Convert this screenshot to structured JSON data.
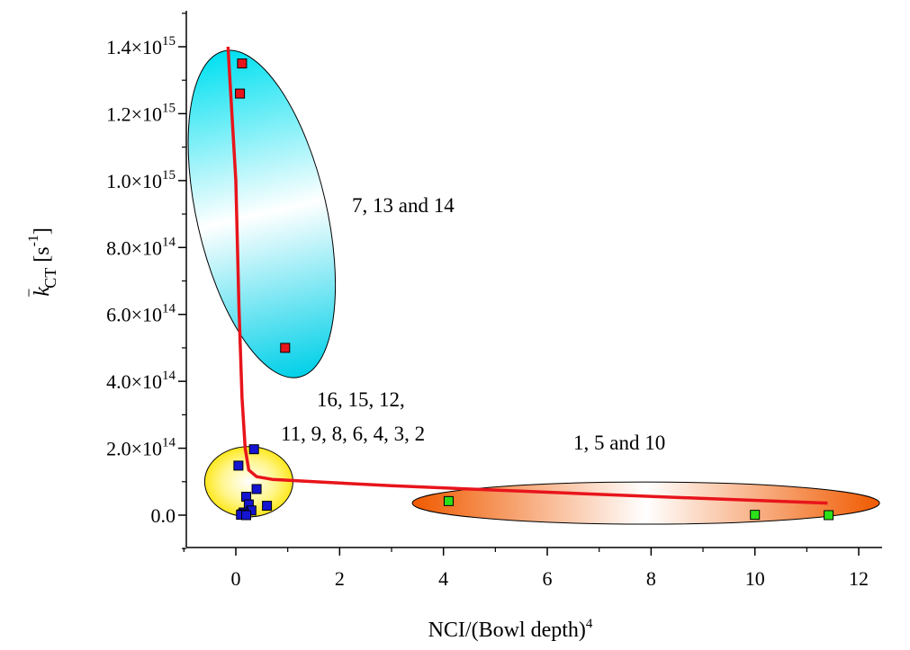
{
  "chart_data": {
    "type": "scatter",
    "xlabel": {
      "base": "NCI/(Bowl depth)",
      "sup": "4"
    },
    "ylabel": {
      "k": "k",
      "sub": "CT",
      "unit_open": "[s",
      "unit_sup": "-1",
      "unit_close": "]"
    },
    "xlim": [
      -1,
      13
    ],
    "ylim": [
      -100000000000000.0,
      1500000000000000.0
    ],
    "x_ticks": [
      0,
      2,
      4,
      6,
      8,
      10,
      12
    ],
    "x_tick_labels": [
      "0",
      "2",
      "4",
      "6",
      "8",
      "10",
      "12"
    ],
    "y_ticks": [
      {
        "value": 0,
        "mant": "0.0",
        "exp": ""
      },
      {
        "value": 200000000000000.0,
        "mant": "2.0×10",
        "exp": "14"
      },
      {
        "value": 400000000000000.0,
        "mant": "4.0×10",
        "exp": "14"
      },
      {
        "value": 600000000000000.0,
        "mant": "6.0×10",
        "exp": "14"
      },
      {
        "value": 800000000000000.0,
        "mant": "8.0×10",
        "exp": "14"
      },
      {
        "value": 1000000000000000.0,
        "mant": "1.0×10",
        "exp": "15"
      },
      {
        "value": 1200000000000000.0,
        "mant": "1.2×10",
        "exp": "15"
      },
      {
        "value": 1400000000000000.0,
        "mant": "1.4×10",
        "exp": "15"
      }
    ],
    "series": [
      {
        "color": "#e8141b",
        "points": [
          [
            0.12,
            1350000000000000.0
          ],
          [
            0.08,
            1260000000000000.0
          ],
          [
            0.95,
            500000000000000.0
          ]
        ]
      },
      {
        "color": "#1414d2",
        "points": [
          [
            0.05,
            148000000000000.0
          ],
          [
            0.35,
            197000000000000.0
          ],
          [
            0.4,
            78000000000000.0
          ],
          [
            0.2,
            55000000000000.0
          ],
          [
            0.25,
            32000000000000.0
          ],
          [
            0.6,
            28000000000000.0
          ],
          [
            0.3,
            14000000000000.0
          ],
          [
            0.15,
            8000000000000.0
          ],
          [
            0.12,
            3000000000000.0
          ],
          [
            0.1,
            1000000000000.0
          ],
          [
            0.2,
            0
          ]
        ]
      },
      {
        "color": "#2be01a",
        "points": [
          [
            4.1,
            42000000000000.0
          ],
          [
            10.0,
            1000000000000.0
          ],
          [
            11.42,
            0
          ]
        ]
      }
    ],
    "fit_line": {
      "color": "#e8141b",
      "points": [
        [
          -0.15,
          1400000000000000.0
        ],
        [
          0.0,
          1000000000000000.0
        ],
        [
          0.06,
          620000000000000.0
        ],
        [
          0.12,
          350000000000000.0
        ],
        [
          0.18,
          200000000000000.0
        ],
        [
          0.25,
          135000000000000.0
        ],
        [
          0.4,
          115000000000000.0
        ],
        [
          0.7,
          107000000000000.0
        ],
        [
          1.5,
          100000000000000.0
        ],
        [
          3.0,
          88000000000000.0
        ],
        [
          5.0,
          75000000000000.0
        ],
        [
          7.0,
          62000000000000.0
        ],
        [
          9.0,
          50000000000000.0
        ],
        [
          11.4,
          36000000000000.0
        ]
      ]
    },
    "groups": [
      {
        "label": "7, 13 and 14",
        "cx": 0.5,
        "cy": 900000000000000.0,
        "rx_data": 1.25,
        "ry_data": 500000000000000.0,
        "angle": -13,
        "fill": "cyan"
      },
      {
        "label_lines": [
          "16, 15, 12,",
          "11, 9, 8, 6, 4, 3, 2"
        ],
        "cx": 0.25,
        "cy": 100000000000000.0,
        "rx_data": 0.85,
        "ry_data": 105000000000000.0,
        "angle": 0,
        "fill": "yellow"
      },
      {
        "label": "1, 5 and 10",
        "cx": 7.9,
        "cy": 36000000000000.0,
        "rx_data": 4.5,
        "ry_data": 63000000000000.0,
        "angle": 0,
        "fill": "orange"
      }
    ]
  }
}
